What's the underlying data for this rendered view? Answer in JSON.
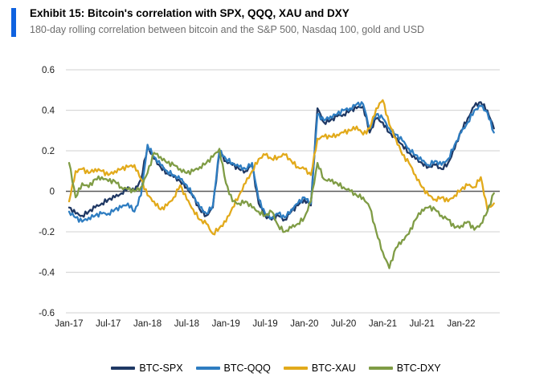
{
  "header": {
    "exhibit_title": "Exhibit 15: Bitcoin's correlation with SPX, QQQ, XAU and DXY",
    "subtitle": "180-day rolling correlation between bitcoin and the S&P 500, Nasdaq 100, gold and USD",
    "accent_color": "#0f62e0"
  },
  "chart_data": {
    "type": "line",
    "title": "Exhibit 15: Bitcoin's correlation with SPX, QQQ, XAU and DXY",
    "subtitle": "180-day rolling correlation between bitcoin and the S&P 500, Nasdaq 100, gold and USD",
    "xlabel": "",
    "ylabel": "",
    "ylim": [
      -0.6,
      0.6
    ],
    "y_tick_values": [
      0.6,
      0.4,
      0.2,
      0,
      -0.2,
      -0.4,
      -0.6
    ],
    "y_tick_labels": [
      "0.6",
      "0.4",
      "0.2",
      "0",
      "-0.2",
      "-0.4",
      "-0.6"
    ],
    "grid": true,
    "zero_line": true,
    "legend_position": "bottom",
    "x": [
      "Jan-17",
      "Feb-17",
      "Mar-17",
      "Apr-17",
      "May-17",
      "Jun-17",
      "Jul-17",
      "Aug-17",
      "Sep-17",
      "Oct-17",
      "Nov-17",
      "Dec-17",
      "Jan-18",
      "Feb-18",
      "Mar-18",
      "Apr-18",
      "May-18",
      "Jun-18",
      "Jul-18",
      "Aug-18",
      "Sep-18",
      "Oct-18",
      "Nov-18",
      "Dec-18",
      "Jan-19",
      "Feb-19",
      "Mar-19",
      "Apr-19",
      "May-19",
      "Jun-19",
      "Jul-19",
      "Aug-19",
      "Sep-19",
      "Oct-19",
      "Nov-19",
      "Dec-19",
      "Jan-20",
      "Feb-20",
      "Mar-20",
      "Apr-20",
      "May-20",
      "Jun-20",
      "Jul-20",
      "Aug-20",
      "Sep-20",
      "Oct-20",
      "Nov-20",
      "Dec-20",
      "Jan-21",
      "Feb-21",
      "Mar-21",
      "Apr-21",
      "May-21",
      "Jun-21",
      "Jul-21",
      "Aug-21",
      "Sep-21",
      "Oct-21",
      "Nov-21",
      "Dec-21",
      "Jan-22",
      "Feb-22",
      "Mar-22",
      "Apr-22",
      "May-22",
      "Jun-22"
    ],
    "x_tick_labels": [
      "Jan-17",
      "Jul-17",
      "Jan-18",
      "Jul-18",
      "Jan-19",
      "Jul-19",
      "Jan-20",
      "Jul-20",
      "Jan-21",
      "Jul-21",
      "Jan-22"
    ],
    "x_tick_indices": [
      0,
      6,
      12,
      18,
      24,
      30,
      36,
      42,
      48,
      54,
      60
    ],
    "series": [
      {
        "name": "BTC-SPX",
        "color": "#1f3864",
        "values": [
          -0.08,
          -0.11,
          -0.12,
          -0.1,
          -0.08,
          -0.06,
          -0.04,
          -0.03,
          -0.01,
          0.02,
          0.0,
          0.06,
          0.22,
          0.16,
          0.12,
          0.09,
          0.07,
          0.05,
          0.02,
          -0.03,
          -0.09,
          -0.12,
          -0.08,
          0.19,
          0.15,
          0.13,
          0.11,
          0.1,
          0.13,
          -0.06,
          -0.12,
          -0.14,
          -0.12,
          -0.14,
          -0.1,
          -0.07,
          -0.04,
          -0.07,
          0.41,
          0.34,
          0.35,
          0.37,
          0.38,
          0.4,
          0.41,
          0.42,
          0.29,
          0.36,
          0.34,
          0.29,
          0.26,
          0.23,
          0.19,
          0.16,
          0.14,
          0.12,
          0.13,
          0.11,
          0.14,
          0.21,
          0.3,
          0.36,
          0.42,
          0.44,
          0.4,
          0.31
        ]
      },
      {
        "name": "BTC-QQQ",
        "color": "#2e7dc1",
        "values": [
          -0.1,
          -0.13,
          -0.15,
          -0.13,
          -0.12,
          -0.11,
          -0.11,
          -0.09,
          -0.08,
          -0.06,
          -0.1,
          -0.02,
          0.23,
          0.17,
          0.13,
          0.1,
          0.08,
          0.06,
          0.03,
          -0.02,
          -0.08,
          -0.11,
          -0.07,
          0.2,
          0.16,
          0.14,
          0.12,
          0.11,
          0.14,
          -0.04,
          -0.11,
          -0.13,
          -0.11,
          -0.13,
          -0.09,
          -0.06,
          -0.03,
          -0.06,
          0.38,
          0.35,
          0.37,
          0.38,
          0.4,
          0.41,
          0.43,
          0.43,
          0.31,
          0.38,
          0.36,
          0.31,
          0.28,
          0.25,
          0.21,
          0.18,
          0.15,
          0.13,
          0.15,
          0.13,
          0.16,
          0.23,
          0.29,
          0.34,
          0.4,
          0.42,
          0.39,
          0.29
        ]
      },
      {
        "name": "BTC-XAU",
        "color": "#e2aa1b",
        "values": [
          -0.05,
          0.1,
          0.11,
          0.09,
          0.11,
          0.1,
          0.08,
          0.1,
          0.11,
          0.12,
          0.13,
          0.06,
          -0.02,
          -0.05,
          -0.09,
          -0.07,
          -0.03,
          0.03,
          -0.04,
          -0.09,
          -0.14,
          -0.16,
          -0.21,
          -0.18,
          -0.15,
          -0.08,
          -0.02,
          0.04,
          0.1,
          0.16,
          0.18,
          0.16,
          0.17,
          0.18,
          0.15,
          0.12,
          0.11,
          0.08,
          0.26,
          0.27,
          0.27,
          0.28,
          0.29,
          0.3,
          0.32,
          0.28,
          0.31,
          0.41,
          0.45,
          0.33,
          0.26,
          0.18,
          0.14,
          0.08,
          0.02,
          -0.02,
          -0.04,
          -0.03,
          -0.05,
          -0.02,
          0.01,
          0.03,
          0.02,
          0.07,
          -0.09,
          -0.06
        ]
      },
      {
        "name": "BTC-DXY",
        "color": "#7f9c45",
        "values": [
          0.14,
          -0.03,
          0.04,
          0.02,
          0.06,
          0.07,
          0.05,
          0.05,
          0.02,
          0.01,
          0.0,
          0.02,
          0.09,
          0.19,
          0.17,
          0.14,
          0.13,
          0.11,
          0.09,
          0.1,
          0.12,
          0.14,
          0.17,
          0.21,
          0.04,
          -0.05,
          -0.06,
          -0.05,
          -0.08,
          -0.1,
          -0.12,
          -0.1,
          -0.17,
          -0.2,
          -0.18,
          -0.16,
          -0.13,
          -0.05,
          0.14,
          0.06,
          0.05,
          0.04,
          0.02,
          0.0,
          -0.02,
          -0.03,
          -0.08,
          -0.2,
          -0.3,
          -0.38,
          -0.28,
          -0.24,
          -0.21,
          -0.14,
          -0.09,
          -0.08,
          -0.09,
          -0.12,
          -0.14,
          -0.18,
          -0.17,
          -0.15,
          -0.19,
          -0.16,
          -0.1,
          -0.01
        ]
      }
    ],
    "style_colors": {
      "gridline": "#d9d9d9",
      "zero_line": "#595959",
      "tick_text": "#1a1a1a"
    }
  }
}
